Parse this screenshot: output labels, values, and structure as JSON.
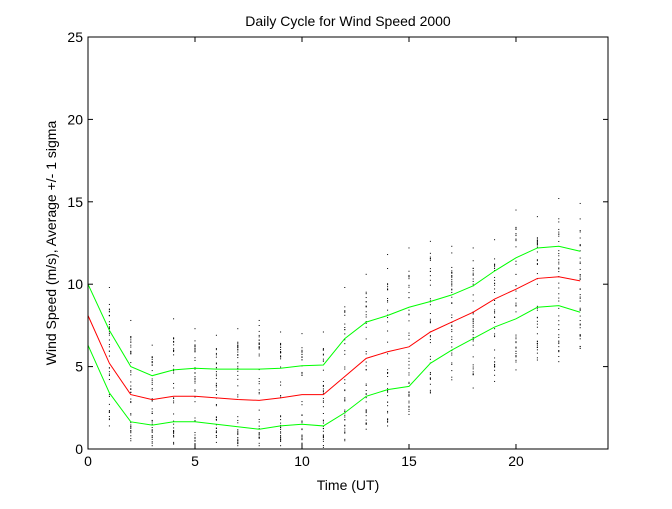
{
  "chart_data": {
    "type": "line",
    "title": "Daily Cycle for Wind Speed 2000",
    "xlabel": "Time (UT)",
    "ylabel": "Wind Speed (m/s), Average +/- 1 sigma",
    "xlim": [
      0,
      24.3
    ],
    "ylim": [
      0,
      25
    ],
    "xticks": [
      0,
      5,
      10,
      15,
      20
    ],
    "yticks": [
      0,
      5,
      10,
      15,
      20,
      25
    ],
    "grid": false,
    "x": [
      0,
      1,
      2,
      3,
      4,
      5,
      6,
      7,
      8,
      9,
      10,
      11,
      12,
      13,
      14,
      15,
      16,
      17,
      18,
      19,
      20,
      21,
      22,
      23
    ],
    "series": [
      {
        "role": "mean",
        "color": "#ff0000",
        "values": [
          8.1,
          5.2,
          3.3,
          3.0,
          3.2,
          3.2,
          3.1,
          3.0,
          2.95,
          3.1,
          3.3,
          3.3,
          4.4,
          5.5,
          5.9,
          6.2,
          7.1,
          7.7,
          8.3,
          9.1,
          9.7,
          10.35,
          10.45,
          10.2
        ]
      },
      {
        "role": "mean-plus-sigma",
        "color": "#00ff00",
        "values": [
          10.0,
          7.2,
          5.0,
          4.45,
          4.8,
          4.9,
          4.85,
          4.85,
          4.85,
          4.9,
          5.05,
          5.1,
          6.7,
          7.7,
          8.1,
          8.6,
          8.95,
          9.35,
          9.9,
          10.8,
          11.6,
          12.2,
          12.3,
          12.0
        ]
      },
      {
        "role": "mean-minus-sigma",
        "color": "#00ff00",
        "values": [
          6.3,
          3.4,
          1.65,
          1.45,
          1.65,
          1.65,
          1.5,
          1.35,
          1.2,
          1.4,
          1.5,
          1.4,
          2.2,
          3.2,
          3.6,
          3.8,
          5.2,
          6.0,
          6.7,
          7.4,
          7.9,
          8.6,
          8.7,
          8.3
        ]
      }
    ],
    "observations": {
      "type": "scatter",
      "color": "#000000",
      "hourly_range": [
        [
          1,
          1.4,
          9.8
        ],
        [
          2,
          0.5,
          7.8
        ],
        [
          3,
          0.2,
          6.3
        ],
        [
          4,
          0.3,
          7.9
        ],
        [
          5,
          0.1,
          7.3
        ],
        [
          6,
          0.4,
          6.9
        ],
        [
          7,
          0.2,
          7.3
        ],
        [
          8,
          0.2,
          7.8
        ],
        [
          9,
          0.2,
          7.1
        ],
        [
          10,
          0.2,
          7.0
        ],
        [
          11,
          0.1,
          7.1
        ],
        [
          12,
          0.5,
          9.8
        ],
        [
          13,
          1.2,
          10.6
        ],
        [
          14,
          1.4,
          11.8
        ],
        [
          15,
          2.1,
          12.2
        ],
        [
          16,
          3.4,
          12.6
        ],
        [
          17,
          4.2,
          12.3
        ],
        [
          18,
          3.7,
          12.2
        ],
        [
          19,
          4.1,
          12.7
        ],
        [
          20,
          4.8,
          14.5
        ],
        [
          21,
          5.4,
          14.1
        ],
        [
          22,
          5.3,
          15.2
        ],
        [
          23,
          6.1,
          14.9
        ]
      ]
    }
  }
}
